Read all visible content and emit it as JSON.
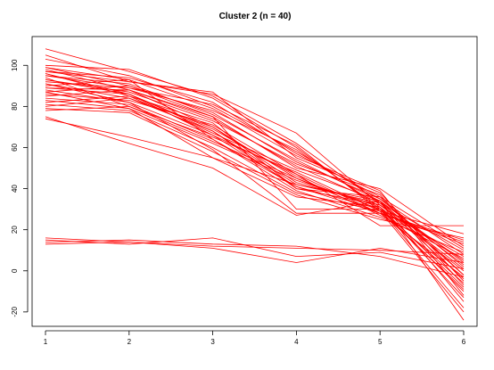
{
  "chart_data": {
    "type": "line",
    "title": "Cluster 2 (n = 40)",
    "xlabel": "",
    "ylabel": "",
    "x": [
      1,
      2,
      3,
      4,
      5,
      6
    ],
    "xlim": [
      0.84,
      6.16
    ],
    "ylim": [
      -27,
      114
    ],
    "x_ticks": [
      1,
      2,
      3,
      4,
      5,
      6
    ],
    "y_ticks": [
      -20,
      0,
      20,
      40,
      60,
      80,
      100
    ],
    "grid": false,
    "legend": "none",
    "line_color": "#ff0000",
    "series": [
      {
        "values": [
          108,
          97,
          85,
          62,
          33,
          3
        ]
      },
      {
        "values": [
          105,
          92,
          87,
          55,
          38,
          -5
        ]
      },
      {
        "values": [
          103,
          95,
          80,
          58,
          35,
          8
        ]
      },
      {
        "values": [
          100,
          98,
          84,
          60,
          30,
          -10
        ]
      },
      {
        "values": [
          99,
          90,
          75,
          50,
          40,
          12
        ]
      },
      {
        "values": [
          98,
          88,
          70,
          45,
          28,
          15
        ]
      },
      {
        "values": [
          97,
          94,
          82,
          57,
          36,
          -2
        ]
      },
      {
        "values": [
          96,
          85,
          72,
          40,
          32,
          5
        ]
      },
      {
        "values": [
          95,
          91,
          76,
          54,
          34,
          -15
        ]
      },
      {
        "values": [
          94,
          80,
          65,
          48,
          29,
          18
        ]
      },
      {
        "values": [
          93,
          87,
          73,
          52,
          37,
          -7
        ]
      },
      {
        "values": [
          92,
          89,
          78,
          59,
          31,
          0
        ]
      },
      {
        "values": [
          91,
          84,
          68,
          42,
          33,
          10
        ]
      },
      {
        "values": [
          90,
          93,
          79,
          56,
          39,
          -12
        ]
      },
      {
        "values": [
          89,
          86,
          69,
          46,
          27,
          6
        ]
      },
      {
        "values": [
          88,
          82,
          66,
          41,
          30,
          -18
        ]
      },
      {
        "values": [
          87,
          90,
          77,
          53,
          35,
          2
        ]
      },
      {
        "values": [
          86,
          83,
          71,
          47,
          28,
          14
        ]
      },
      {
        "values": [
          85,
          88,
          74,
          51,
          33,
          -4
        ]
      },
      {
        "values": [
          84,
          81,
          64,
          39,
          26,
          9
        ]
      },
      {
        "values": [
          83,
          79,
          62,
          44,
          31,
          -8
        ]
      },
      {
        "values": [
          82,
          85,
          67,
          49,
          34,
          4
        ]
      },
      {
        "values": [
          81,
          78,
          60,
          38,
          29,
          -20
        ]
      },
      {
        "values": [
          80,
          84,
          70,
          43,
          32,
          1
        ]
      },
      {
        "values": [
          79,
          77,
          58,
          37,
          25,
          16
        ]
      },
      {
        "values": [
          78,
          80,
          63,
          45,
          30,
          -6
        ]
      },
      {
        "values": [
          97,
          92,
          86,
          67,
          32,
          5
        ]
      },
      {
        "values": [
          95,
          89,
          81,
          61,
          29,
          -9
        ]
      },
      {
        "values": [
          93,
          86,
          68,
          40,
          36,
          11
        ]
      },
      {
        "values": [
          91,
          82,
          59,
          28,
          28,
          -3
        ]
      },
      {
        "values": [
          89,
          88,
          75,
          30,
          30,
          7
        ]
      },
      {
        "values": [
          87,
          79,
          55,
          36,
          31,
          -13
        ]
      },
      {
        "values": [
          99,
          93,
          64,
          41,
          28,
          13
        ]
      },
      {
        "values": [
          96,
          86,
          66,
          47,
          22,
          22
        ]
      },
      {
        "values": [
          74,
          65,
          55,
          42,
          34,
          -2
        ]
      },
      {
        "values": [
          75,
          62,
          50,
          27,
          34,
          -24
        ]
      },
      {
        "values": [
          16,
          14,
          12,
          11,
          10,
          8
        ]
      },
      {
        "values": [
          15,
          13,
          16,
          7,
          9,
          1
        ]
      },
      {
        "values": [
          14,
          15,
          13,
          12,
          7,
          -3
        ]
      },
      {
        "values": [
          13,
          14,
          11,
          4,
          11,
          4
        ]
      }
    ]
  }
}
